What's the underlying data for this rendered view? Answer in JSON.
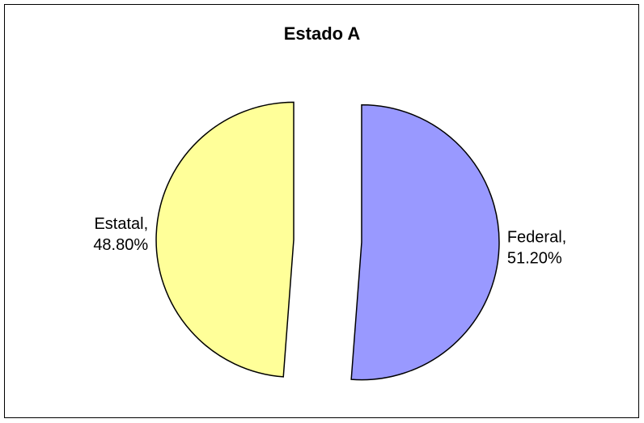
{
  "chart_data": {
    "type": "pie",
    "title": "Estado A",
    "categories": [
      "Federal,",
      "Estatal,"
    ],
    "values": [
      51.2,
      48.8
    ],
    "value_labels": [
      "51.20%",
      "48.80%"
    ],
    "colors": [
      "#9999ff",
      "#ffff99"
    ]
  }
}
